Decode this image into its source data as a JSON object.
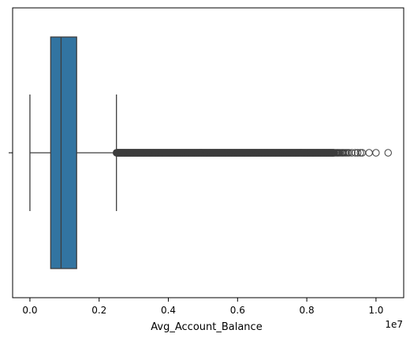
{
  "chart_data": {
    "type": "box",
    "orientation": "horizontal",
    "xlabel": "Avg_Account_Balance",
    "ylabel": "",
    "x_unit_multiplier": "1e7",
    "xlim": [
      -0.05,
      1.08
    ],
    "xticks": [
      "0.0",
      "0.2",
      "0.4",
      "0.6",
      "0.8",
      "1.0"
    ],
    "scale": 10000000,
    "grid": false,
    "box": {
      "whisker_low": 0.0,
      "q1": 0.06,
      "median": 0.09,
      "q3": 0.135,
      "whisker_high": 0.25,
      "outliers_dense_from": 0.25,
      "outliers_dense_to": 0.88,
      "outliers_sparse": [
        0.882,
        0.885,
        0.888,
        0.89,
        0.893,
        0.896,
        0.9,
        0.903,
        0.906,
        0.91,
        0.914,
        0.918,
        0.922,
        0.93,
        0.94,
        0.947,
        0.955,
        0.96,
        0.98,
        1.0,
        1.035
      ]
    },
    "colors": {
      "box": "#3274a1",
      "line": "#3d3d3d"
    }
  }
}
